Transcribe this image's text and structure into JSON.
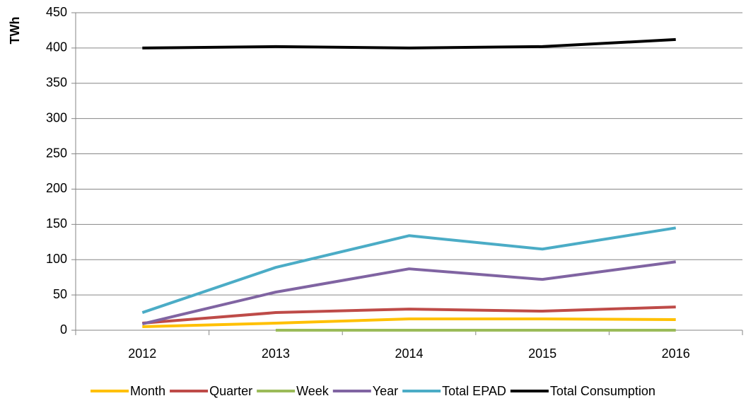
{
  "chart_data": {
    "type": "line",
    "y_label": "TWh",
    "categories": [
      "2012",
      "2013",
      "2014",
      "2015",
      "2016"
    ],
    "series": [
      {
        "name": "Month",
        "color": "#ffc000",
        "values": [
          5,
          10,
          16,
          16,
          15
        ]
      },
      {
        "name": "Quarter",
        "color": "#be4b48",
        "values": [
          10,
          25,
          30,
          27,
          33
        ]
      },
      {
        "name": "Week",
        "color": "#9bbb59",
        "values": [
          null,
          0,
          0,
          0,
          0
        ]
      },
      {
        "name": "Year",
        "color": "#8064a2",
        "values": [
          9,
          54,
          87,
          72,
          97
        ]
      },
      {
        "name": "Total EPAD",
        "color": "#4bacc6",
        "values": [
          25,
          89,
          134,
          115,
          145
        ]
      },
      {
        "name": "Total Consumption",
        "color": "#000000",
        "values": [
          400,
          402,
          400,
          402,
          412
        ]
      }
    ],
    "ylim": [
      0,
      450
    ],
    "yticks": [
      0,
      50,
      100,
      150,
      200,
      250,
      300,
      350,
      400,
      450
    ],
    "grid": true,
    "legend": "bottom"
  }
}
